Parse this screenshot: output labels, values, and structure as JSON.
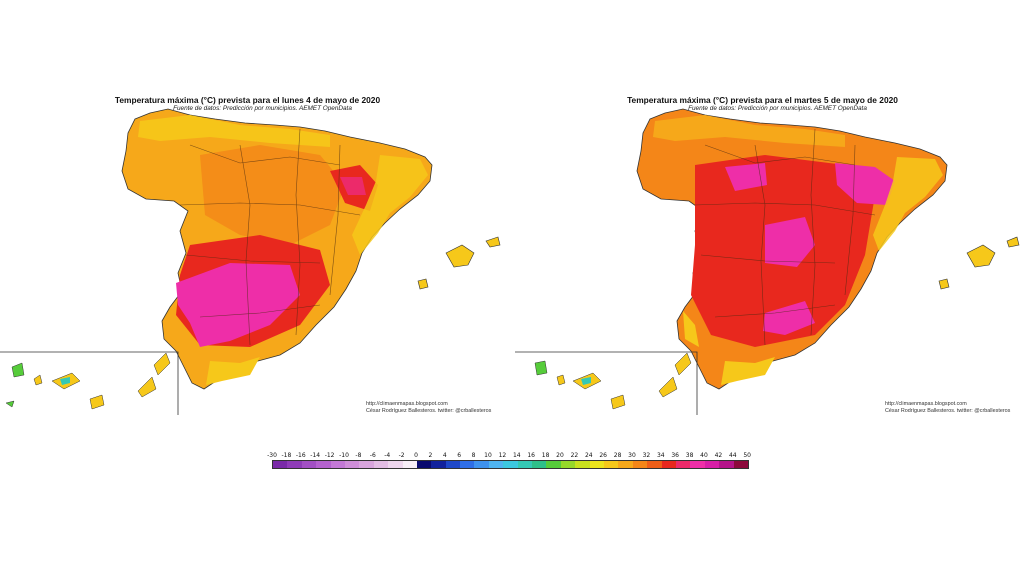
{
  "maps": [
    {
      "title": "Temperatura máxima (°C) prevista para el lunes 4 de mayo de 2020",
      "subtitle": "Fuente de datos: Predicción por municipios. AEMET OpenData",
      "credit_url": "http://climaenmapas.blogspot.com",
      "credit_author": "César Rodríguez Ballesteros. twitter: @crballesteros"
    },
    {
      "title": "Temperatura máxima (°C) prevista para el martes 5 de mayo de 2020",
      "subtitle": "Fuente de datos: Predicción por municipios. AEMET OpenData",
      "credit_url": "http://climaenmapas.blogspot.com",
      "credit_author": "César Rodríguez Ballesteros. twitter: @crballesteros"
    }
  ],
  "legend": {
    "labels": [
      "-30",
      "-18",
      "-16",
      "-14",
      "-12",
      "-10",
      "-8",
      "-6",
      "-4",
      "-2",
      "0",
      "2",
      "4",
      "6",
      "8",
      "10",
      "12",
      "14",
      "16",
      "18",
      "20",
      "22",
      "24",
      "26",
      "28",
      "30",
      "32",
      "34",
      "36",
      "38",
      "40",
      "42",
      "44",
      "50"
    ],
    "colors": [
      "#7a2aa8",
      "#8f3cb8",
      "#a24fc4",
      "#b462cf",
      "#c378d6",
      "#cf8ed9",
      "#d9a5de",
      "#e3bde5",
      "#eed6ee",
      "#f7eef7",
      "#0a0a6e",
      "#12229c",
      "#1f48c8",
      "#2f6ee6",
      "#3f92ee",
      "#4fb4f0",
      "#3cc8e0",
      "#34c8b4",
      "#2ec08a",
      "#56cc3a",
      "#96d82a",
      "#c8e01e",
      "#ece41c",
      "#f6c81a",
      "#f6a81a",
      "#f48618",
      "#ee5e18",
      "#e8281e",
      "#ec2a6a",
      "#ee2ea8",
      "#d81ea6",
      "#b4148a",
      "#8c0a3c"
    ]
  }
}
